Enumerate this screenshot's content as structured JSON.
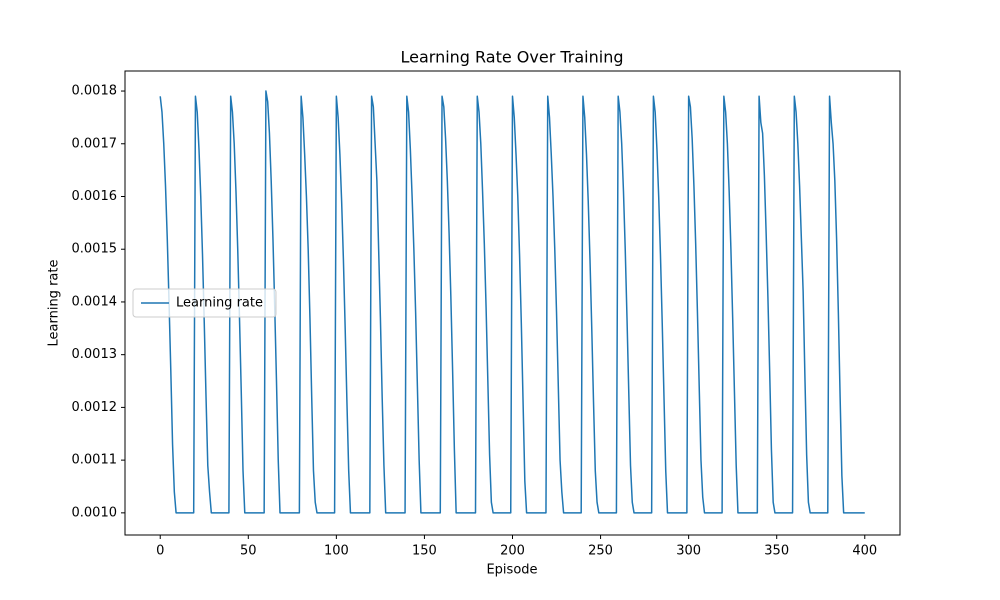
{
  "chart_data": {
    "type": "line",
    "title": "Learning Rate Over Training",
    "x_label": "Episode",
    "y_label": "Learning rate",
    "x": [
      0,
      1,
      2,
      3,
      4,
      5,
      6,
      7,
      8,
      9,
      19,
      20,
      21,
      22,
      23,
      24,
      25,
      26,
      27,
      28,
      29,
      39,
      40,
      41,
      42,
      43,
      44,
      45,
      46,
      47,
      48,
      49,
      59,
      60,
      61,
      62,
      63,
      64,
      65,
      66,
      67,
      68,
      69,
      79,
      80,
      81,
      82,
      83,
      84,
      85,
      86,
      87,
      88,
      89,
      99,
      100,
      101,
      102,
      103,
      104,
      105,
      106,
      107,
      108,
      109,
      119,
      120,
      121,
      122,
      123,
      124,
      125,
      126,
      127,
      128,
      129,
      139,
      140,
      141,
      142,
      143,
      144,
      145,
      146,
      147,
      148,
      149,
      159,
      160,
      161,
      162,
      163,
      164,
      165,
      166,
      167,
      168,
      169,
      179,
      180,
      181,
      182,
      183,
      184,
      185,
      186,
      187,
      188,
      189,
      199,
      200,
      201,
      202,
      203,
      204,
      205,
      206,
      207,
      208,
      209,
      219,
      220,
      221,
      222,
      223,
      224,
      225,
      226,
      227,
      228,
      229,
      239,
      240,
      241,
      242,
      243,
      244,
      245,
      246,
      247,
      248,
      249,
      259,
      260,
      261,
      262,
      263,
      264,
      265,
      266,
      267,
      268,
      269,
      279,
      280,
      281,
      282,
      283,
      284,
      285,
      286,
      287,
      288,
      289,
      299,
      300,
      301,
      302,
      303,
      304,
      305,
      306,
      307,
      308,
      309,
      319,
      320,
      321,
      322,
      323,
      324,
      325,
      326,
      327,
      328,
      329,
      339,
      340,
      341,
      342,
      343,
      344,
      345,
      346,
      347,
      348,
      349,
      359,
      360,
      361,
      362,
      363,
      364,
      365,
      366,
      367,
      368,
      369,
      379,
      380,
      381,
      382,
      383,
      384,
      385,
      386,
      387,
      388,
      389,
      399,
      400
    ],
    "series": [
      {
        "name": "Learning rate",
        "color": "#1f77b4",
        "values": [
          0.00179,
          0.00176,
          0.0017,
          0.00162,
          0.00152,
          0.0014,
          0.00127,
          0.00113,
          0.00104,
          0.001,
          0.001,
          0.00179,
          0.00176,
          0.00169,
          0.0016,
          0.00149,
          0.00136,
          0.00122,
          0.00109,
          0.00104,
          0.001,
          0.001,
          0.00179,
          0.00176,
          0.0017,
          0.00161,
          0.0015,
          0.00137,
          0.00123,
          0.00108,
          0.001,
          0.001,
          0.001,
          0.0018,
          0.00178,
          0.00172,
          0.00163,
          0.00152,
          0.00139,
          0.00125,
          0.0011,
          0.001,
          0.001,
          0.001,
          0.00179,
          0.00175,
          0.00168,
          0.0016,
          0.0015,
          0.00137,
          0.00122,
          0.00108,
          0.00102,
          0.001,
          0.001,
          0.00179,
          0.00175,
          0.00168,
          0.00159,
          0.00148,
          0.00135,
          0.00121,
          0.00108,
          0.001,
          0.001,
          0.001,
          0.00179,
          0.00177,
          0.0017,
          0.00163,
          0.0015,
          0.00137,
          0.00122,
          0.00109,
          0.001,
          0.001,
          0.001,
          0.00179,
          0.00176,
          0.00169,
          0.0016,
          0.0015,
          0.00138,
          0.00124,
          0.0011,
          0.001,
          0.001,
          0.001,
          0.00179,
          0.00177,
          0.00171,
          0.00163,
          0.00153,
          0.00141,
          0.00127,
          0.00112,
          0.001,
          0.001,
          0.001,
          0.00179,
          0.00176,
          0.0017,
          0.00161,
          0.00151,
          0.00139,
          0.00125,
          0.00111,
          0.00102,
          0.001,
          0.001,
          0.00179,
          0.00175,
          0.00168,
          0.0016,
          0.00149,
          0.00136,
          0.00121,
          0.00106,
          0.001,
          0.001,
          0.001,
          0.00179,
          0.00175,
          0.00168,
          0.0016,
          0.0015,
          0.00138,
          0.00124,
          0.0011,
          0.00104,
          0.001,
          0.001,
          0.00179,
          0.00175,
          0.00168,
          0.00159,
          0.00148,
          0.00135,
          0.00121,
          0.00108,
          0.00102,
          0.001,
          0.001,
          0.00179,
          0.00176,
          0.0017,
          0.00161,
          0.0015,
          0.00137,
          0.00123,
          0.00109,
          0.00102,
          0.001,
          0.001,
          0.00179,
          0.00176,
          0.00169,
          0.0016,
          0.00149,
          0.00136,
          0.00122,
          0.00108,
          0.001,
          0.001,
          0.001,
          0.00179,
          0.00177,
          0.00171,
          0.00162,
          0.00151,
          0.00138,
          0.00124,
          0.0011,
          0.00103,
          0.001,
          0.001,
          0.00179,
          0.00176,
          0.0017,
          0.00161,
          0.0015,
          0.00137,
          0.00123,
          0.00109,
          0.001,
          0.001,
          0.001,
          0.00179,
          0.00174,
          0.00172,
          0.00164,
          0.00153,
          0.00141,
          0.00127,
          0.00112,
          0.00102,
          0.001,
          0.001,
          0.00179,
          0.00176,
          0.0017,
          0.00162,
          0.00152,
          0.00142,
          0.00126,
          0.00111,
          0.00102,
          0.001,
          0.001,
          0.00179,
          0.00174,
          0.0017,
          0.00163,
          0.00152,
          0.00138,
          0.00122,
          0.00107,
          0.001,
          0.001,
          0.001,
          0.001
        ]
      }
    ],
    "xlim": [
      -20,
      420
    ],
    "ylim": [
      0.000958,
      0.001838
    ],
    "xticks": [
      0,
      50,
      100,
      150,
      200,
      250,
      300,
      350,
      400
    ],
    "yticks": [
      {
        "value": 0.001,
        "label": "0.0010"
      },
      0.0011,
      0.0012,
      0.0013,
      0.0014,
      0.0015,
      0.0016,
      0.0017,
      0.0018
    ],
    "legend": "center left"
  }
}
